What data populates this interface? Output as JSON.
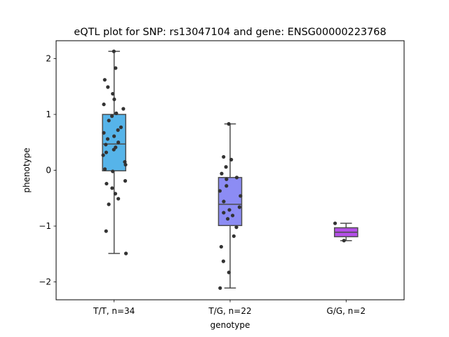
{
  "chart_data": {
    "type": "box",
    "title": "eQTL plot for SNP: rs13047104 and gene: ENSG00000223768",
    "xlabel": "genotype",
    "ylabel": "phenotype",
    "ylim": [
      -2.32,
      2.32
    ],
    "yticks": [
      -2,
      -1,
      0,
      1,
      2
    ],
    "grid": false,
    "categories": [
      "T/T, n=34",
      "T/G, n=22",
      "G/G, n=2"
    ],
    "box_colors": [
      "#56b4e9",
      "#8c8cf4",
      "#b44fe8"
    ],
    "point_color": "#333333",
    "boxes": [
      {
        "whislo": -1.49,
        "q1": -0.01,
        "med": 0.47,
        "q3": 1.0,
        "whishi": 2.13
      },
      {
        "whislo": -2.11,
        "q1": -0.99,
        "med": -0.61,
        "q3": -0.13,
        "whishi": 0.83
      },
      {
        "whislo": -1.26,
        "q1": -1.19,
        "med": -1.11,
        "q3": -1.03,
        "whishi": -0.95
      }
    ],
    "points": [
      [
        2.13,
        1.83,
        1.62,
        1.49,
        1.37,
        1.27,
        1.18,
        1.1,
        1.02,
        0.97,
        0.89,
        0.77,
        0.72,
        0.67,
        0.61,
        0.56,
        0.5,
        0.46,
        0.41,
        0.37,
        0.32,
        0.27,
        0.15,
        0.1,
        0.02,
        -0.02,
        -0.19,
        -0.24,
        -0.32,
        -0.42,
        -0.51,
        -0.61,
        -1.09,
        -1.49
      ],
      [
        0.83,
        0.24,
        0.19,
        0.06,
        -0.06,
        -0.13,
        -0.16,
        -0.28,
        -0.37,
        -0.46,
        -0.56,
        -0.66,
        -0.71,
        -0.76,
        -0.81,
        -0.87,
        -1.02,
        -1.18,
        -1.37,
        -1.63,
        -1.83,
        -2.11
      ],
      [
        -0.95,
        -1.26
      ]
    ]
  }
}
